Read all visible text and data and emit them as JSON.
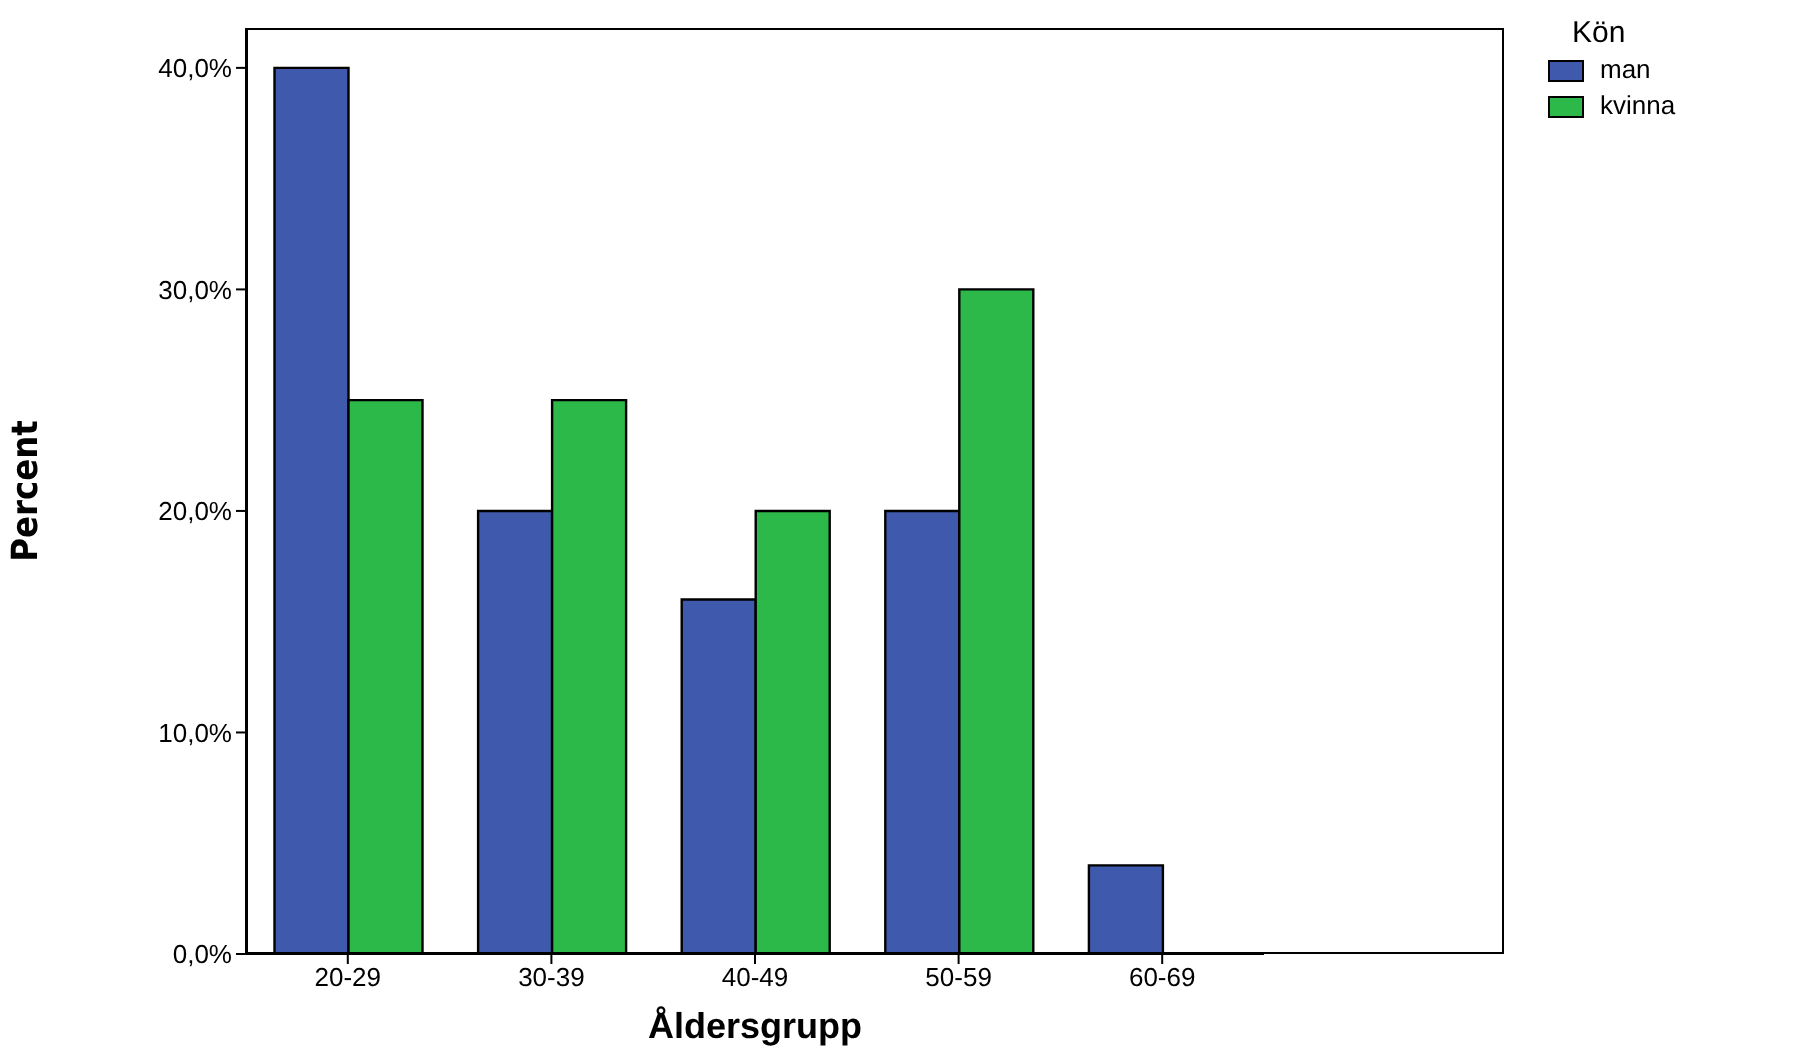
{
  "chart_data": {
    "type": "bar",
    "xlabel": "Åldersgrupp",
    "ylabel": "Percent",
    "legend_title": "Kön",
    "legend": "top right",
    "grid": false,
    "categories": [
      "20-29",
      "30-39",
      "40-49",
      "50-59",
      "60-69"
    ],
    "series": [
      {
        "name": "man",
        "color": "#3f59ac",
        "values": [
          40,
          20,
          16,
          20,
          4
        ]
      },
      {
        "name": "kvinna",
        "color": "#2db84a",
        "values": [
          25,
          25,
          20,
          30,
          null
        ]
      }
    ],
    "ylim": [
      0,
      41.8
    ],
    "yticks": [
      {
        "value": 0,
        "label": "0,0%"
      },
      {
        "value": 10,
        "label": "10,0%"
      },
      {
        "value": 20,
        "label": "20,0%"
      },
      {
        "value": 30,
        "label": "30,0%"
      },
      {
        "value": 40,
        "label": "40,0%"
      }
    ]
  }
}
